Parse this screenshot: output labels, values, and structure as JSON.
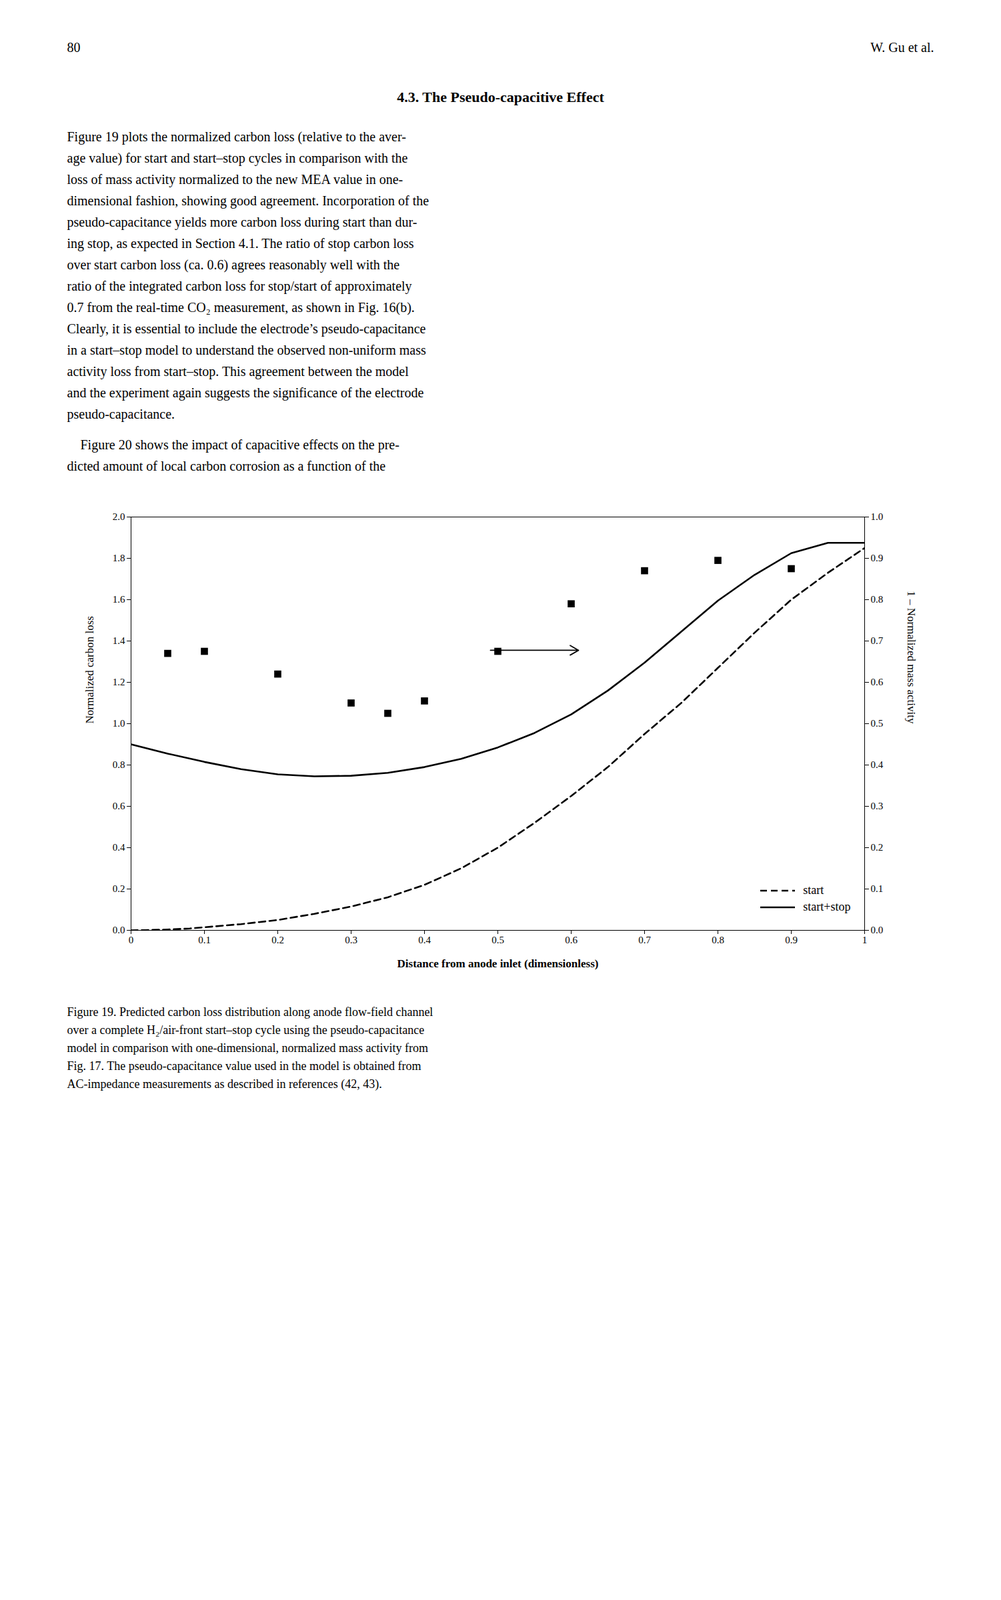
{
  "chart_data": {
    "type": "line",
    "page_number": "80",
    "page_author": "W. Gu et al.",
    "section_title": "4.3.  The Pseudo-capacitive Effect",
    "paragraphs": [
      [
        "Figure 19 plots the normalized carbon loss (relative to the aver-",
        "age value) for start and start–stop cycles in comparison with the",
        "loss of mass activity normalized to the new MEA value in one-",
        "dimensional fashion, showing good agreement. Incorporation of the",
        "pseudo-capacitance yields more carbon loss during start than dur-",
        "ing stop, as expected in Section 4.1. The ratio of stop carbon loss",
        "over start carbon loss (ca. 0.6) agrees reasonably well with the",
        "ratio of the integrated carbon loss for stop/start of approximately",
        "0.7 from the real-time CO₂ measurement, as shown in Fig. 16(b).",
        "Clearly, it is essential to include the electrode’s pseudo-capacitance",
        "in a start–stop model to understand the observed non-uniform mass",
        "activity loss from start–stop. This agreement between the model",
        "and the experiment again suggests the significance of the electrode",
        "pseudo-capacitance."
      ],
      [
        "    Figure 20 shows the impact of capacitive effects on the pre-",
        "dicted amount of local carbon corrosion as a function of the"
      ]
    ],
    "caption": [
      "Figure 19. Predicted carbon loss distribution along anode flow-field channel",
      "over a complete H₂/air-front start–stop cycle using the pseudo-capacitance",
      "model in comparison with one-dimensional, normalized mass activity from",
      "Fig. 17. The pseudo-capacitance value used in the model is obtained from",
      "AC-impedance measurements as described in references (42, 43)."
    ],
    "xlabel": "Distance from anode inlet (dimensionless)",
    "ylabel": "Normalized carbon loss",
    "y2label": "1 – Normalized mass activity",
    "xlim": [
      0,
      1
    ],
    "ylim": [
      0,
      2
    ],
    "y2lim": [
      0,
      1
    ],
    "xticks": [
      0,
      0.1,
      0.2,
      0.3,
      0.4,
      0.5,
      0.6,
      0.7,
      0.8,
      0.9,
      1
    ],
    "yticks": [
      {
        "value": 0,
        "label": "0.0"
      },
      0.2,
      0.4,
      0.6,
      0.8,
      {
        "value": 1,
        "label": "1.0"
      },
      1.2,
      1.4,
      1.6,
      1.8,
      {
        "value": 2,
        "label": "2.0"
      }
    ],
    "y2ticks": [
      {
        "value": 0,
        "label": "0.0"
      },
      0.1,
      0.2,
      0.3,
      0.4,
      0.5,
      0.6,
      0.7,
      0.8,
      0.9,
      {
        "value": 1,
        "label": "1.0"
      }
    ],
    "legend": "lower right",
    "series": [
      {
        "name": "start",
        "type": "line",
        "line_style": "dashed",
        "color": "#000000",
        "x": [
          0.0,
          0.02,
          0.05,
          0.08,
          0.1,
          0.15,
          0.2,
          0.25,
          0.3,
          0.35,
          0.4,
          0.45,
          0.5,
          0.55,
          0.6,
          0.65,
          0.7,
          0.75,
          0.8,
          0.85,
          0.9,
          0.95,
          1.0
        ],
        "values": [
          0.0,
          0.001,
          0.004,
          0.009,
          0.015,
          0.03,
          0.05,
          0.08,
          0.115,
          0.16,
          0.22,
          0.3,
          0.4,
          0.52,
          0.65,
          0.79,
          0.95,
          1.1,
          1.27,
          1.44,
          1.6,
          1.73,
          1.85
        ]
      },
      {
        "name": "start+stop",
        "type": "line",
        "line_style": "solid",
        "color": "#000000",
        "x": [
          0.0,
          0.05,
          0.1,
          0.15,
          0.2,
          0.25,
          0.3,
          0.35,
          0.4,
          0.45,
          0.5,
          0.55,
          0.6,
          0.65,
          0.7,
          0.75,
          0.8,
          0.85,
          0.9,
          0.95,
          1.0
        ],
        "values": [
          0.9,
          0.855,
          0.815,
          0.78,
          0.755,
          0.745,
          0.748,
          0.762,
          0.79,
          0.83,
          0.885,
          0.955,
          1.045,
          1.16,
          1.295,
          1.445,
          1.595,
          1.72,
          1.825,
          1.875,
          1.875
        ]
      },
      {
        "type": "scatter",
        "marker": "square",
        "color": "#000000",
        "x": [
          0.05,
          0.1,
          0.2,
          0.3,
          0.35,
          0.4,
          0.5,
          0.6,
          0.7,
          0.8,
          0.9
        ],
        "values": [
          1.34,
          1.35,
          1.24,
          1.1,
          1.05,
          1.11,
          1.35,
          1.58,
          1.74,
          1.79,
          1.75
        ]
      }
    ],
    "annotations": [
      {
        "type": "arrow",
        "x": 0.49,
        "y": 1.355,
        "x_end": 0.61,
        "y_end": 1.355,
        "color": "#000000"
      }
    ]
  }
}
